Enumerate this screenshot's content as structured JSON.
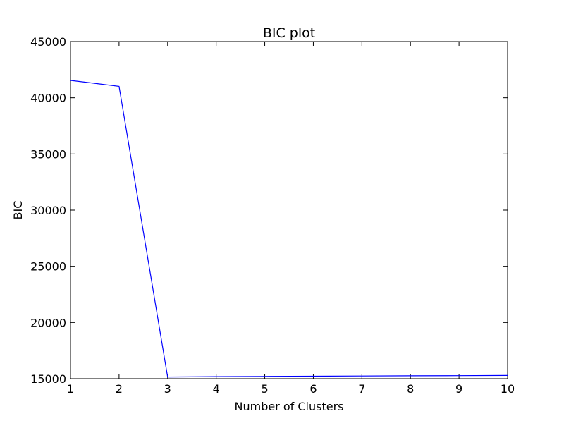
{
  "chart_data": {
    "type": "line",
    "title": "BIC plot",
    "xlabel": "Number of Clusters",
    "ylabel": "BIC",
    "xlim": [
      1,
      10
    ],
    "ylim": [
      15000,
      45000
    ],
    "xticks": [
      1,
      2,
      3,
      4,
      5,
      6,
      7,
      8,
      9,
      10
    ],
    "yticks": [
      15000,
      20000,
      25000,
      30000,
      35000,
      40000,
      45000
    ],
    "grid": false,
    "legend": "none",
    "series": [
      {
        "color": "#0000ff",
        "x": [
          1,
          2,
          3,
          4,
          5,
          6,
          7,
          8,
          9,
          10
        ],
        "y": [
          41550,
          41020,
          15150,
          15180,
          15200,
          15220,
          15240,
          15260,
          15270,
          15290
        ]
      }
    ]
  }
}
